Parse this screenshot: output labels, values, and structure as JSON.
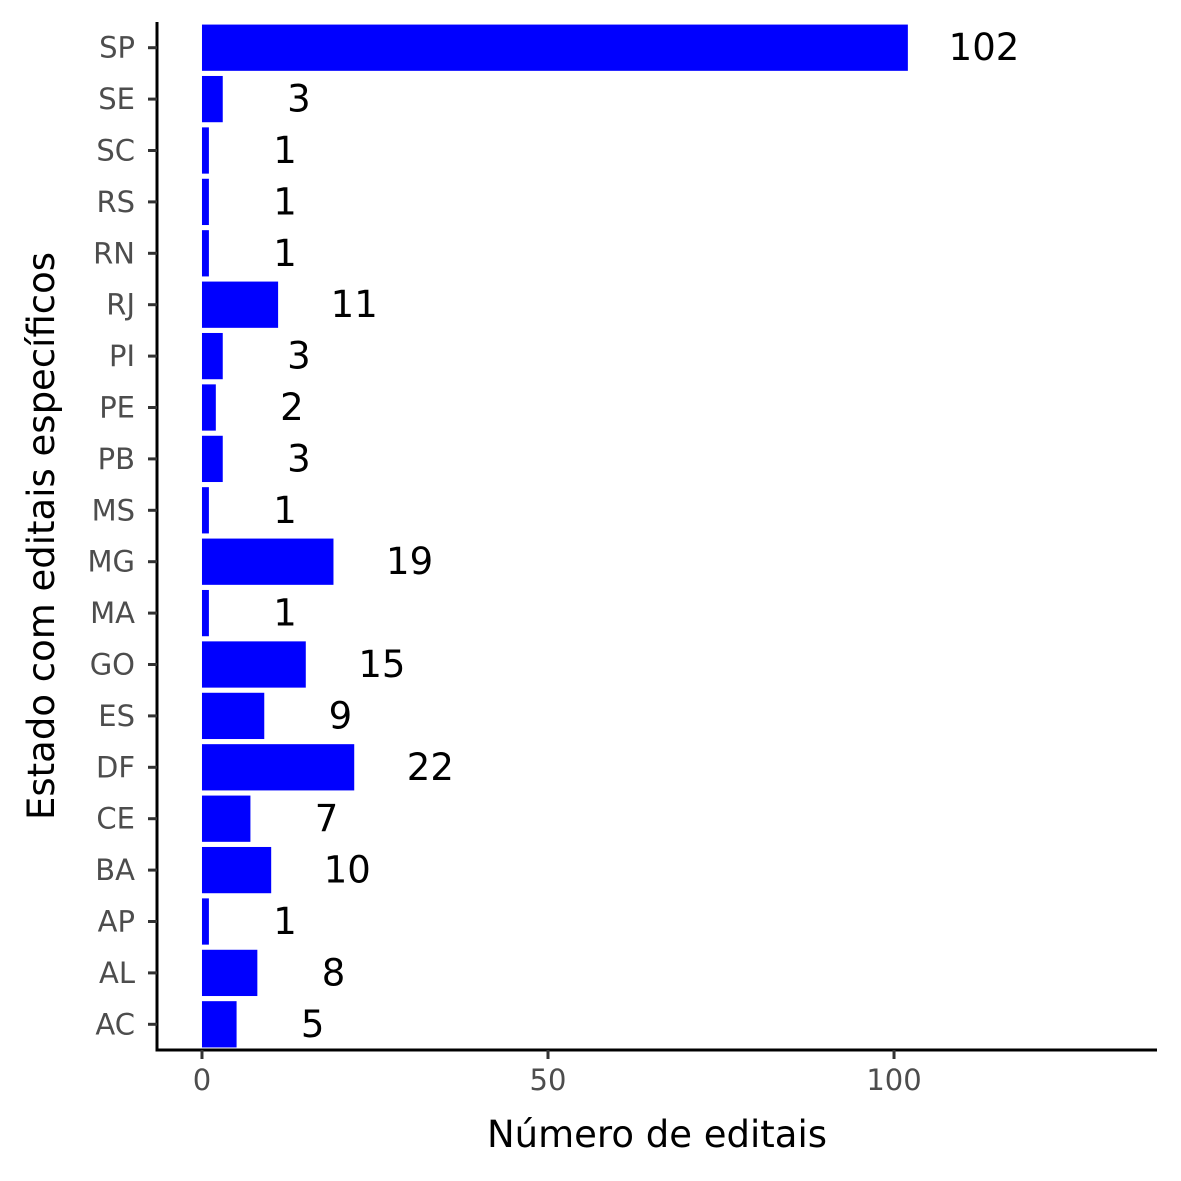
{
  "chart_data": {
    "type": "bar",
    "orientation": "horizontal",
    "categories": [
      "AC",
      "AL",
      "AP",
      "BA",
      "CE",
      "DF",
      "ES",
      "GO",
      "MA",
      "MG",
      "MS",
      "PB",
      "PE",
      "PI",
      "RJ",
      "RN",
      "RS",
      "SC",
      "SE",
      "SP"
    ],
    "values": [
      5,
      8,
      1,
      10,
      7,
      22,
      9,
      15,
      1,
      19,
      1,
      3,
      2,
      3,
      11,
      1,
      1,
      1,
      3,
      102
    ],
    "data_labels": [
      "5",
      "8",
      "1",
      "10",
      "7",
      "22",
      "9",
      "15",
      "1",
      "19",
      "1",
      "3",
      "2",
      "3",
      "11",
      "1",
      "1",
      "1",
      "3",
      "102"
    ],
    "xlabel": "Número de editais",
    "ylabel": "Estado com editais específicos",
    "xlim": [
      -6.5,
      138
    ],
    "x_ticks": [
      0,
      50,
      100
    ],
    "x_tick_labels": [
      "0",
      "50",
      "100"
    ],
    "grid": false,
    "legend": "none",
    "bar_color": "#0000ff"
  }
}
